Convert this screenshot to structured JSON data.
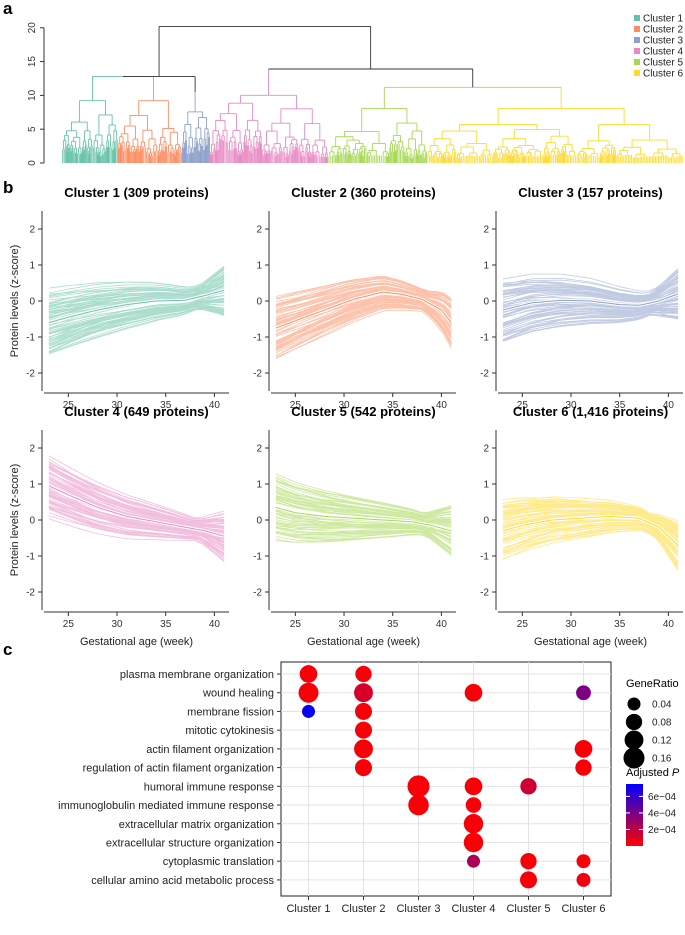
{
  "panels": {
    "a": "a",
    "b": "b",
    "c": "c"
  },
  "cluster_colors": [
    "#66c2a5",
    "#fc8d62",
    "#8da0cb",
    "#e78ac3",
    "#a6d854",
    "#ffd92f"
  ],
  "chart_data": [
    {
      "type": "dendrogram",
      "panel": "a",
      "y_ticks": [
        0,
        5,
        10,
        15,
        20
      ],
      "ylim": [
        0,
        21
      ],
      "merge_heights": {
        "root": 20.2,
        "left_group": 12.8,
        "right_group": 13.9,
        "right_sub": 11.2
      },
      "legend": [
        "Cluster 1",
        "Cluster 2",
        "Cluster 3",
        "Cluster 4",
        "Cluster 5",
        "Cluster 6"
      ],
      "cluster_sizes": [
        309,
        360,
        157,
        649,
        542,
        1416
      ]
    },
    {
      "type": "line",
      "panel": "b",
      "xlabel": "Gestational age (week)",
      "ylabel": "Protein levels (z-score)",
      "xlim": [
        22.5,
        41.5
      ],
      "ylim": [
        -2.5,
        2.5
      ],
      "x_ticks": [
        25,
        30,
        35,
        40
      ],
      "y_ticks": [
        -2,
        -1,
        0,
        1,
        2
      ],
      "clusters": [
        {
          "title": "Cluster 1 (309 proteins)",
          "x": [
            23,
            25,
            28,
            31,
            34,
            37,
            39,
            41
          ],
          "mean": [
            -0.6,
            -0.45,
            -0.25,
            -0.1,
            0,
            0.02,
            0.15,
            0.3
          ]
        },
        {
          "title": "Cluster 2 (360 proteins)",
          "x": [
            23,
            25,
            28,
            31,
            34,
            36,
            38,
            40,
            41
          ],
          "mean": [
            -0.75,
            -0.55,
            -0.25,
            0.05,
            0.25,
            0.18,
            0.05,
            -0.25,
            -0.6
          ]
        },
        {
          "title": "Cluster 3 (157 proteins)",
          "x": [
            23,
            26,
            29,
            32,
            35,
            37,
            39,
            41
          ],
          "mean": [
            -0.25,
            -0.05,
            0.02,
            0,
            -0.1,
            -0.12,
            0,
            0.2
          ]
        },
        {
          "title": "Cluster 4 (649 proteins)",
          "x": [
            23,
            25,
            28,
            31,
            34,
            37,
            39,
            41
          ],
          "mean": [
            0.95,
            0.7,
            0.35,
            0.1,
            -0.05,
            -0.2,
            -0.3,
            -0.45
          ]
        },
        {
          "title": "Cluster 5 (542 proteins)",
          "x": [
            23,
            25,
            28,
            31,
            34,
            37,
            39,
            41
          ],
          "mean": [
            0.35,
            0.2,
            0.1,
            0.05,
            0,
            -0.05,
            -0.15,
            -0.3
          ]
        },
        {
          "title": "Cluster 6 (1,416 proteins)",
          "x": [
            23,
            25,
            28,
            31,
            34,
            37,
            39,
            41
          ],
          "mean": [
            -0.3,
            -0.15,
            0,
            0.05,
            0.1,
            0.05,
            -0.2,
            -0.7
          ]
        }
      ]
    },
    {
      "type": "dotplot",
      "panel": "c",
      "categories": [
        "Cluster 1",
        "Cluster 2",
        "Cluster 3",
        "Cluster 4",
        "Cluster 5",
        "Cluster 6"
      ],
      "terms": [
        "plasma membrane organization",
        "wound healing",
        "membrane fission",
        "mitotic cytokinesis",
        "actin filament organization",
        "regulation of actin filament organization",
        "humoral immune response",
        "immunoglobulin mediated immune response",
        "extracellular matrix organization",
        "extracellular structure organization",
        "cytoplasmic translation",
        "cellular amino acid metabolic process"
      ],
      "points": [
        {
          "term": 0,
          "cluster": 0,
          "gene_ratio": 0.1,
          "padj": 2e-05
        },
        {
          "term": 1,
          "cluster": 0,
          "gene_ratio": 0.14,
          "padj": 2e-05
        },
        {
          "term": 2,
          "cluster": 0,
          "gene_ratio": 0.04,
          "padj": 0.00072
        },
        {
          "term": 0,
          "cluster": 1,
          "gene_ratio": 0.08,
          "padj": 2e-05
        },
        {
          "term": 1,
          "cluster": 1,
          "gene_ratio": 0.12,
          "padj": 0.00012
        },
        {
          "term": 2,
          "cluster": 1,
          "gene_ratio": 0.09,
          "padj": 2e-05
        },
        {
          "term": 3,
          "cluster": 1,
          "gene_ratio": 0.09,
          "padj": 2e-05
        },
        {
          "term": 4,
          "cluster": 1,
          "gene_ratio": 0.12,
          "padj": 2e-05
        },
        {
          "term": 5,
          "cluster": 1,
          "gene_ratio": 0.09,
          "padj": 2e-05
        },
        {
          "term": 6,
          "cluster": 2,
          "gene_ratio": 0.18,
          "padj": 2e-05
        },
        {
          "term": 7,
          "cluster": 2,
          "gene_ratio": 0.15,
          "padj": 2e-05
        },
        {
          "term": 1,
          "cluster": 3,
          "gene_ratio": 0.1,
          "padj": 2e-05
        },
        {
          "term": 6,
          "cluster": 3,
          "gene_ratio": 0.1,
          "padj": 2e-05
        },
        {
          "term": 7,
          "cluster": 3,
          "gene_ratio": 0.07,
          "padj": 2e-05
        },
        {
          "term": 8,
          "cluster": 3,
          "gene_ratio": 0.13,
          "padj": 2e-05
        },
        {
          "term": 9,
          "cluster": 3,
          "gene_ratio": 0.13,
          "padj": 2e-05
        },
        {
          "term": 10,
          "cluster": 3,
          "gene_ratio": 0.04,
          "padj": 0.00025
        },
        {
          "term": 6,
          "cluster": 4,
          "gene_ratio": 0.08,
          "padj": 0.00015
        },
        {
          "term": 10,
          "cluster": 4,
          "gene_ratio": 0.08,
          "padj": 2e-05
        },
        {
          "term": 11,
          "cluster": 4,
          "gene_ratio": 0.09,
          "padj": 2e-05
        },
        {
          "term": 1,
          "cluster": 5,
          "gene_ratio": 0.06,
          "padj": 0.00038
        },
        {
          "term": 4,
          "cluster": 5,
          "gene_ratio": 0.1,
          "padj": 2e-05
        },
        {
          "term": 5,
          "cluster": 5,
          "gene_ratio": 0.08,
          "padj": 2e-05
        },
        {
          "term": 10,
          "cluster": 5,
          "gene_ratio": 0.05,
          "padj": 2e-05
        },
        {
          "term": 11,
          "cluster": 5,
          "gene_ratio": 0.05,
          "padj": 4e-05
        }
      ],
      "legend_generatio": {
        "title": "GeneRatio",
        "values": [
          0.04,
          0.08,
          0.12,
          0.16
        ],
        "labels": [
          "0.04",
          "0.08",
          "0.12",
          "0.16"
        ]
      },
      "legend_padj": {
        "title": "Adjusted ",
        "title_italic": "P",
        "labels": [
          "6e−04",
          "4e−04",
          "2e−04"
        ],
        "values": [
          0.0006,
          0.0004,
          0.0002
        ],
        "range": [
          0,
          0.00075
        ],
        "color_low": "#ff0000",
        "color_high": "#0000ff"
      }
    }
  ]
}
